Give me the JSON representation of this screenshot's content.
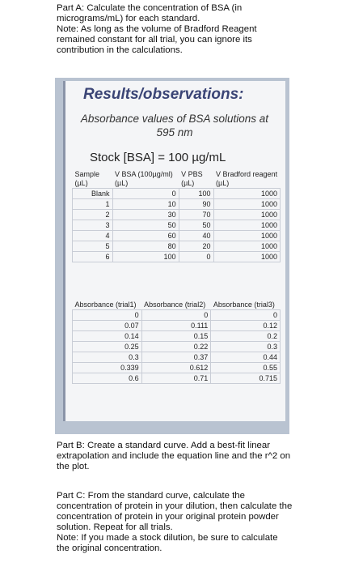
{
  "part_a": {
    "task": "Part A: Calculate the concentration of BSA (in micrograms/mL) for each standard.",
    "note": "Note: As long as the volume of Bradford Reagent remained constant for all trial, you can ignore its contribution in the calculations."
  },
  "photo": {
    "title": "Results/observations:",
    "subtitle": "Absorbance values of BSA solutions at 595 nm",
    "stock": "Stock [BSA] = 100 µg/mL",
    "volume_table": {
      "headers": [
        "Sample (µL)",
        "V BSA (100µg/ml) (µL)",
        "V PBS (µL)",
        "V Bradford reagent (µL)"
      ],
      "rows": [
        [
          "Blank",
          "0",
          "100",
          "1000"
        ],
        [
          "1",
          "10",
          "90",
          "1000"
        ],
        [
          "2",
          "30",
          "70",
          "1000"
        ],
        [
          "3",
          "50",
          "50",
          "1000"
        ],
        [
          "4",
          "60",
          "40",
          "1000"
        ],
        [
          "5",
          "80",
          "20",
          "1000"
        ],
        [
          "6",
          "100",
          "0",
          "1000"
        ]
      ]
    },
    "absorbance_table": {
      "headers": [
        "Absorbance (trial1)",
        "Absorbance (trial2)",
        "Absorbance (trial3)"
      ],
      "rows": [
        [
          "0",
          "0",
          "0"
        ],
        [
          "0.07",
          "0.111",
          "0.12"
        ],
        [
          "0.14",
          "0.15",
          "0.2"
        ],
        [
          "0.25",
          "0.22",
          "0.3"
        ],
        [
          "0.3",
          "0.37",
          "0.44"
        ],
        [
          "0.339",
          "0.612",
          "0.55"
        ],
        [
          "0.6",
          "0.71",
          "0.715"
        ]
      ]
    }
  },
  "part_b": {
    "task": "Part B: Create a standard curve. Add a best-fit linear extrapolation and include the equation line and the r^2 on the plot."
  },
  "part_c": {
    "task": "Part C: From the standard curve, calculate the concentration of protein in your dilution, then calculate the concentration of protein in your original protein powder solution. Repeat for all trials.",
    "note": "Note: If you made a stock dilution, be sure to calculate the original concentration."
  }
}
